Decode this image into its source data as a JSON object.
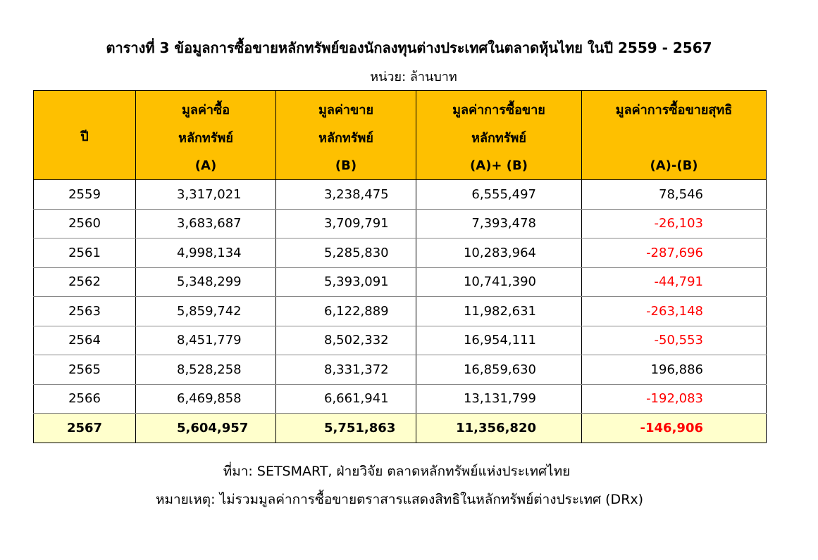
{
  "title": "ตารางที่ 3 ข้อมูลการซื้อขายหลักทรัพย์ของนักลงทุนต่างประเทศในตลาดหุ้นไทย ในปี 2559 - 2567",
  "unit": "หน่วย: ล้านบาท",
  "headers": {
    "year": "ปี",
    "buy": [
      "มูลค่าซื้อ",
      "หลักทรัพย์",
      "(A)"
    ],
    "sell": [
      "มูลค่าขาย",
      "หลักทรัพย์",
      "(B)"
    ],
    "total": [
      "มูลค่าการซื้อขาย",
      "หลักทรัพย์",
      "(A)+ (B)"
    ],
    "net": [
      "มูลค่าการซื้อขายสุทธิ",
      "(A)-(B)"
    ]
  },
  "colors": {
    "header_bg": "#fec000",
    "highlight_bg": "#ffffcc",
    "negative": "#ff0000"
  },
  "rows": [
    {
      "year": "2559",
      "buy": "3,317,021",
      "sell": "3,238,475",
      "total": "6,555,497",
      "net": "78,546",
      "negative": false
    },
    {
      "year": "2560",
      "buy": "3,683,687",
      "sell": "3,709,791",
      "total": "7,393,478",
      "net": "-26,103",
      "negative": true
    },
    {
      "year": "2561",
      "buy": "4,998,134",
      "sell": "5,285,830",
      "total": "10,283,964",
      "net": "-287,696",
      "negative": true
    },
    {
      "year": "2562",
      "buy": "5,348,299",
      "sell": "5,393,091",
      "total": "10,741,390",
      "net": "-44,791",
      "negative": true
    },
    {
      "year": "2563",
      "buy": "5,859,742",
      "sell": "6,122,889",
      "total": "11,982,631",
      "net": "-263,148",
      "negative": true
    },
    {
      "year": "2564",
      "buy": "8,451,779",
      "sell": "8,502,332",
      "total": "16,954,111",
      "net": "-50,553",
      "negative": true
    },
    {
      "year": "2565",
      "buy": "8,528,258",
      "sell": "8,331,372",
      "total": "16,859,630",
      "net": "196,886",
      "negative": false
    },
    {
      "year": "2566",
      "buy": "6,469,858",
      "sell": "6,661,941",
      "total": "13,131,799",
      "net": "-192,083",
      "negative": true
    },
    {
      "year": "2567",
      "buy": "5,604,957",
      "sell": "5,751,863",
      "total": "11,356,820",
      "net": "-146,906",
      "negative": true,
      "highlight": true
    }
  ],
  "source": "ที่มา: SETSMART, ฝ่ายวิจัย ตลาดหลักทรัพย์แห่งประเทศไทย",
  "note": "หมายเหตุ: ไม่รวมมูลค่าการซื้อขายตราสารแสดงสิทธิในหลักทรัพย์ต่างประเทศ (DRx)"
}
